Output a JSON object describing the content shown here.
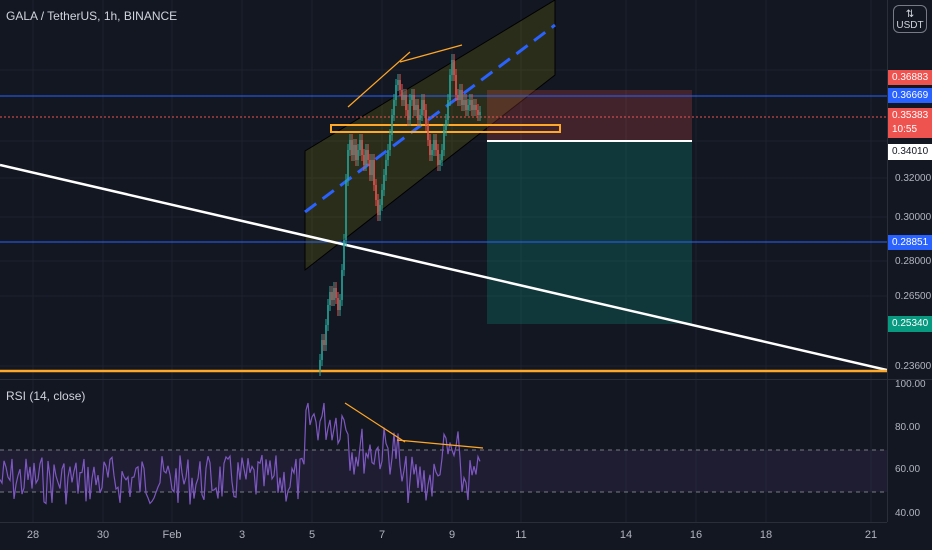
{
  "symbol": "GALA / TetherUS, 1h, BINANCE",
  "currency": "USDT",
  "rsi_label": "RSI (14, close)",
  "price_ticks": [
    "0.32000",
    "0.30000",
    "0.28000",
    "0.26500",
    "0.23600"
  ],
  "rsi_ticks": [
    "100.00",
    "80.00",
    "60.00",
    "40.00"
  ],
  "tags": [
    {
      "key": "t1",
      "text": "0.36883",
      "color": "#ef5350"
    },
    {
      "key": "t2",
      "text": "0.36669",
      "color": "#2962ff"
    },
    {
      "key": "t3",
      "text": "0.35383",
      "sub": "10:55",
      "color": "#ef5350"
    },
    {
      "key": "t4",
      "text": "0.34010",
      "color": "#ffffff",
      "textColor": "#131722"
    },
    {
      "key": "t5",
      "text": "0.28851",
      "color": "#2962ff"
    },
    {
      "key": "t6",
      "text": "0.25340",
      "color": "#089981"
    }
  ],
  "time_labels": [
    "28",
    "30",
    "Feb",
    "3",
    "5",
    "7",
    "9",
    "11",
    "14",
    "16",
    "18",
    "21"
  ],
  "colors": {
    "background": "#131722",
    "up_candle": "#26a69a",
    "down_candle": "#ef5350",
    "rsi_line": "#7e57c2",
    "horizontal_blue": "#2962ff",
    "support_orange": "#ffa726",
    "channel_fill": "#808000"
  },
  "chart_data": {
    "type": "candlestick",
    "price_range": [
      0.232,
      0.378
    ],
    "candles_approx": [
      {
        "date": "Feb 5",
        "low": 0.236,
        "high": 0.268
      },
      {
        "date": "Feb 6",
        "low": 0.262,
        "high": 0.352
      },
      {
        "date": "Feb 7",
        "low": 0.298,
        "high": 0.372
      },
      {
        "date": "Feb 8",
        "low": 0.332,
        "high": 0.368
      },
      {
        "date": "Feb 9",
        "low": 0.338,
        "high": 0.376
      },
      {
        "date": "Feb 10",
        "low": 0.35,
        "high": 0.366
      }
    ],
    "rsi_range": [
      30,
      100
    ]
  }
}
